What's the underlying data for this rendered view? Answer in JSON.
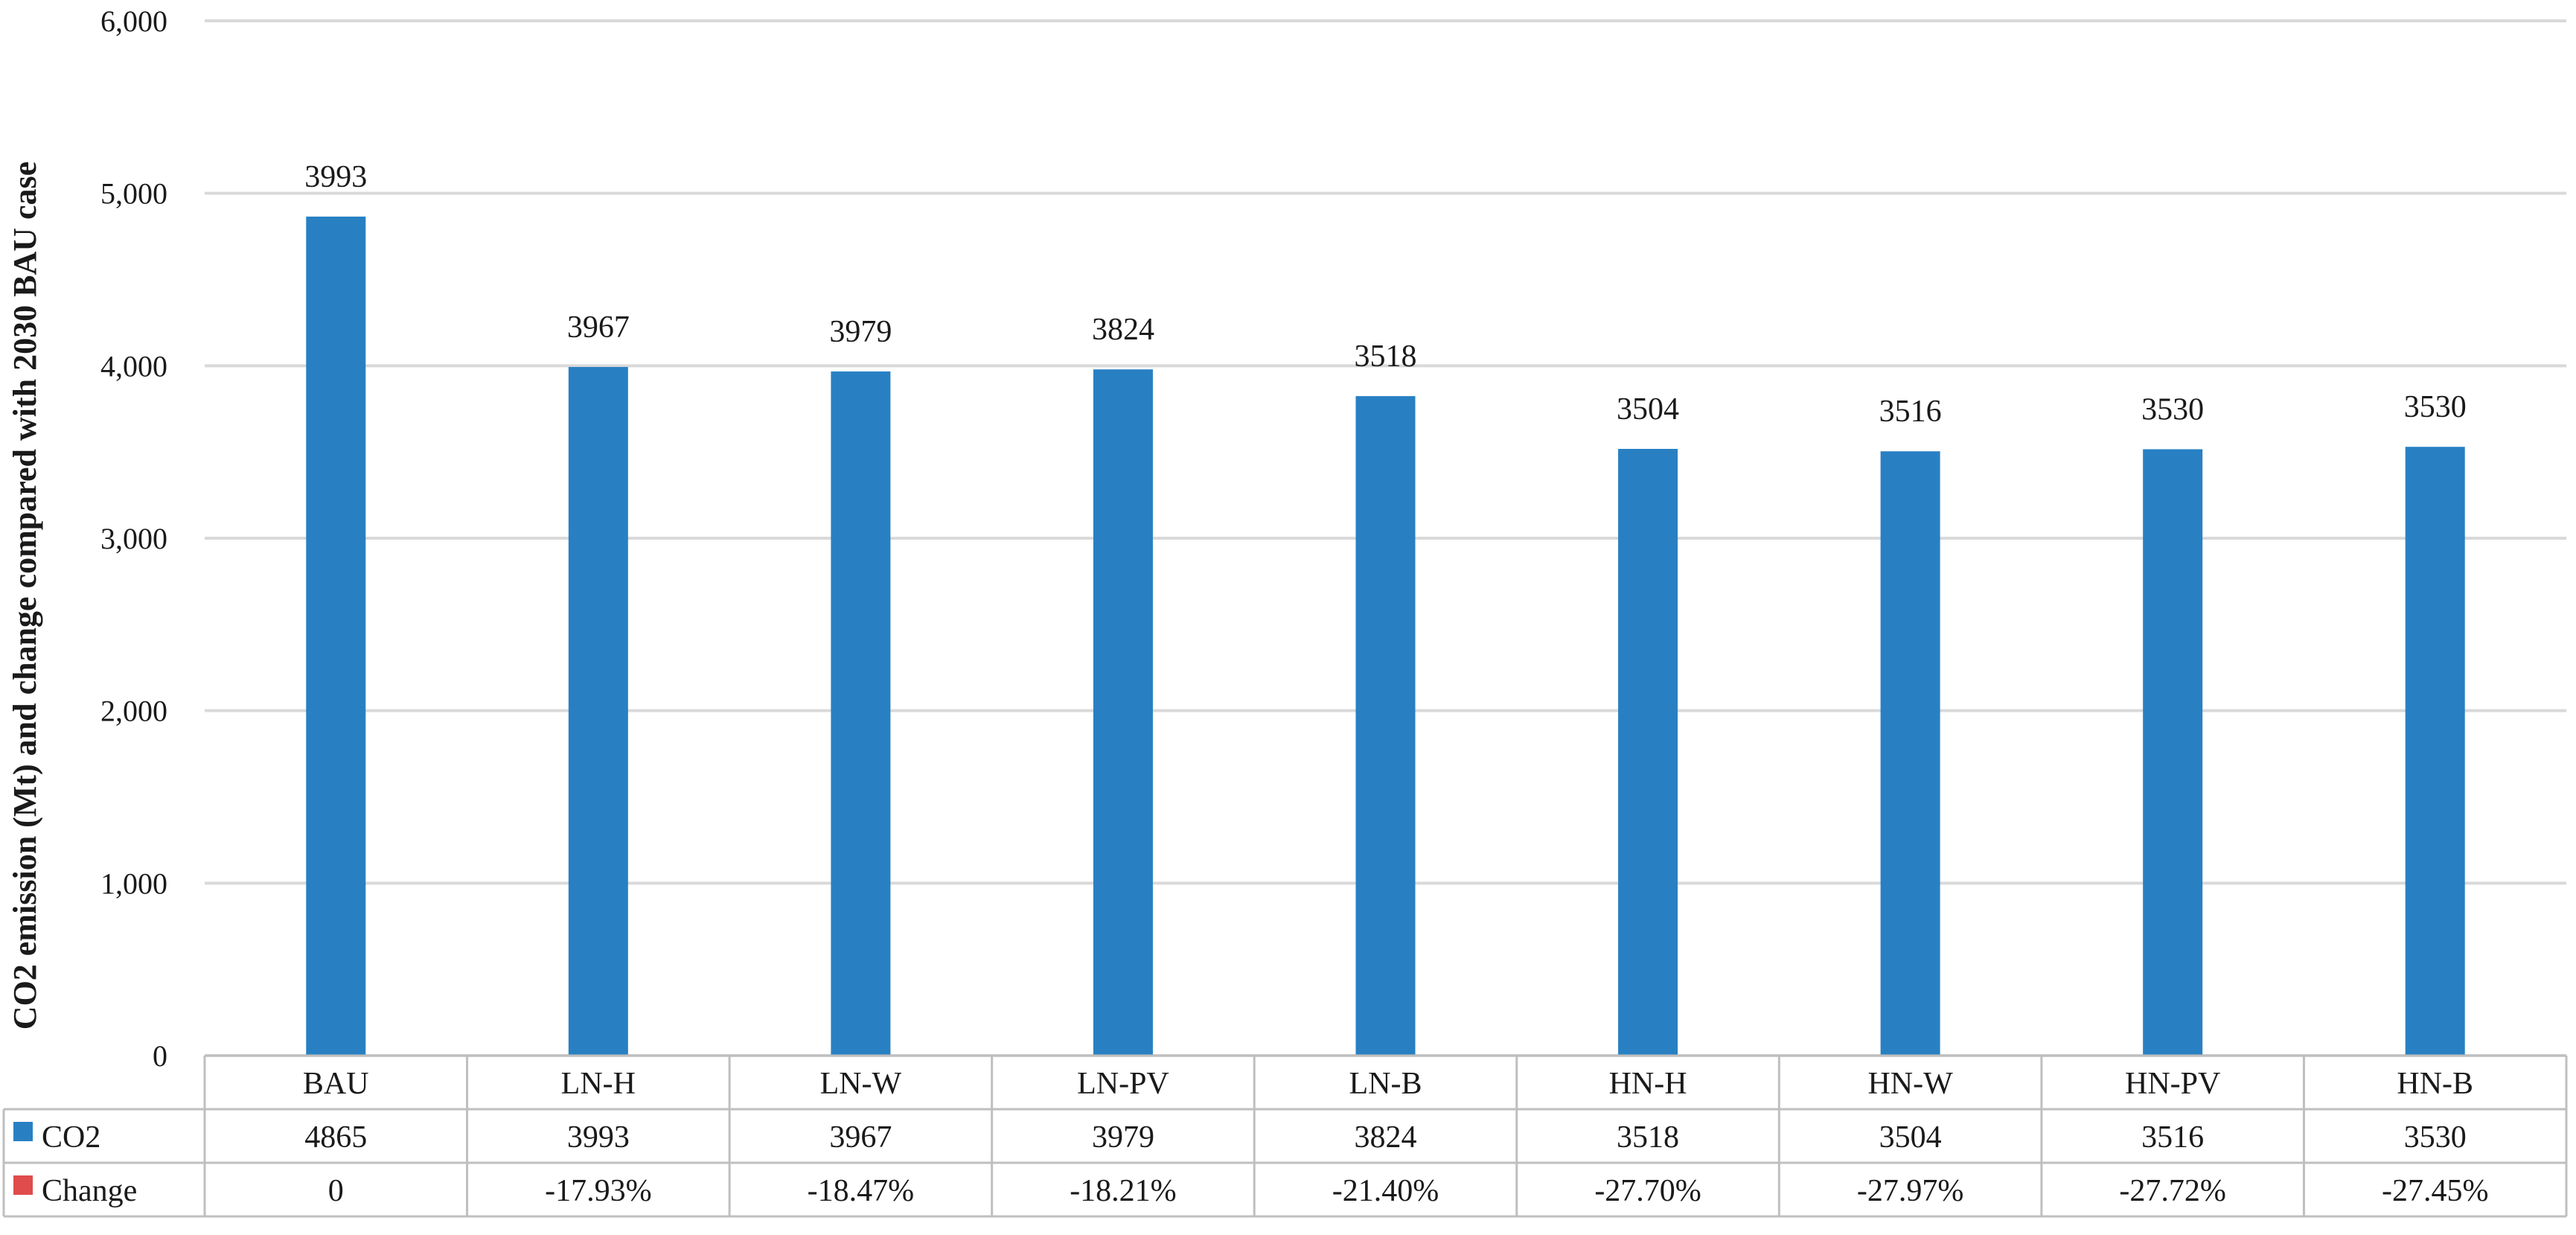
{
  "chart_data": {
    "type": "bar",
    "ylabel": "CO2 emission (Mt) and change compared with 2030 BAU case",
    "ylim": [
      0,
      6000
    ],
    "yticks": [
      "0",
      "1,000",
      "2,000",
      "3,000",
      "4,000",
      "5,000",
      "6,000"
    ],
    "grid": true,
    "categories": [
      "BAU",
      "LN-H",
      "LN-W",
      "LN-PV",
      "LN-B",
      "HN-H",
      "HN-W",
      "HN-PV",
      "HN-B"
    ],
    "series": [
      {
        "name": "CO2",
        "color": "#2880C3",
        "values": [
          4865,
          3993,
          3967,
          3979,
          3824,
          3518,
          3504,
          3516,
          3530
        ]
      },
      {
        "name": "Change",
        "color": "#E04B4B",
        "values": [
          0,
          -17.93,
          -18.47,
          -18.21,
          -21.4,
          -27.7,
          -27.97,
          -27.72,
          -27.45
        ]
      }
    ],
    "data_labels": [
      "3993",
      "3967",
      "3979",
      "3824",
      "3518",
      "3504",
      "3516",
      "3530",
      "3530"
    ],
    "table": {
      "rows": [
        {
          "name": "CO2",
          "cells": [
            "4865",
            "3993",
            "3967",
            "3979",
            "3824",
            "3518",
            "3504",
            "3516",
            "3530"
          ]
        },
        {
          "name": "Change",
          "cells": [
            "0",
            "-17.93%",
            "-18.47%",
            "-18.21%",
            "-21.40%",
            "-27.70%",
            "-27.97%",
            "-27.72%",
            "-27.45%"
          ]
        }
      ]
    }
  }
}
